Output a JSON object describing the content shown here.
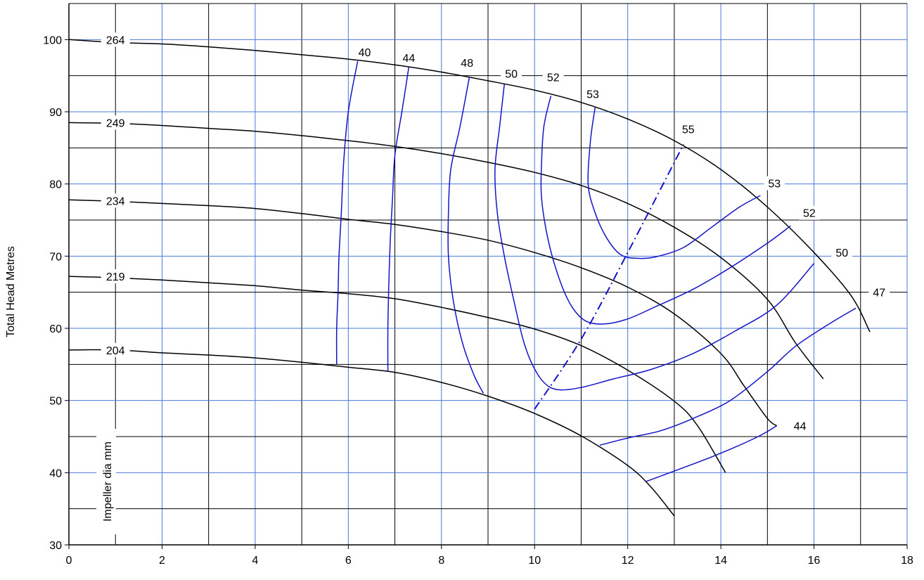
{
  "chart_data": {
    "type": "line",
    "title": "",
    "xlabel": "",
    "ylabel": "Total Head Metres",
    "inner_label": "Impeller dia mm",
    "xlim": [
      0,
      18
    ],
    "ylim": [
      30,
      105
    ],
    "x_ticks": [
      0,
      2,
      4,
      6,
      8,
      10,
      12,
      14,
      16,
      18
    ],
    "y_ticks": [
      30,
      40,
      50,
      60,
      70,
      80,
      90,
      100
    ],
    "grid": true,
    "colors": {
      "head": "#000000",
      "efficiency": "#1414c8",
      "grid_blue": "#4a78d8",
      "grid_black": "#000000"
    },
    "head_curves": [
      {
        "label": "264",
        "label_at": [
          1.0,
          100.0
        ],
        "points": [
          [
            0,
            100
          ],
          [
            1,
            99.6
          ],
          [
            2,
            99.4
          ],
          [
            3,
            99.0
          ],
          [
            4,
            98.5
          ],
          [
            5,
            97.9
          ],
          [
            6,
            97.3
          ],
          [
            7,
            96.5
          ],
          [
            8,
            95.5
          ],
          [
            9,
            94.3
          ],
          [
            10,
            93.0
          ],
          [
            11,
            91.3
          ],
          [
            12,
            89.0
          ],
          [
            13,
            86.0
          ],
          [
            14,
            82.0
          ],
          [
            15,
            76.8
          ],
          [
            16,
            70.5
          ],
          [
            16.8,
            64.5
          ],
          [
            17.2,
            59.5
          ]
        ]
      },
      {
        "label": "249",
        "label_at": [
          1.0,
          88.5
        ],
        "points": [
          [
            0,
            88.5
          ],
          [
            1,
            88.4
          ],
          [
            2,
            88.1
          ],
          [
            3,
            87.7
          ],
          [
            4,
            87.3
          ],
          [
            5,
            86.7
          ],
          [
            6,
            86.0
          ],
          [
            7,
            85.2
          ],
          [
            8,
            84.2
          ],
          [
            9,
            83.0
          ],
          [
            10,
            81.6
          ],
          [
            11,
            79.8
          ],
          [
            12,
            77.3
          ],
          [
            13,
            74.0
          ],
          [
            14,
            69.8
          ],
          [
            15,
            64.0
          ],
          [
            15.6,
            58.0
          ],
          [
            16.2,
            53.0
          ]
        ]
      },
      {
        "label": "234",
        "label_at": [
          1.0,
          77.7
        ],
        "points": [
          [
            0,
            77.8
          ],
          [
            1,
            77.6
          ],
          [
            2,
            77.3
          ],
          [
            3,
            77.0
          ],
          [
            4,
            76.6
          ],
          [
            5,
            75.9
          ],
          [
            6,
            75.1
          ],
          [
            7,
            74.4
          ],
          [
            8,
            73.4
          ],
          [
            9,
            72.2
          ],
          [
            10,
            70.5
          ],
          [
            11,
            68.4
          ],
          [
            12,
            65.7
          ],
          [
            13,
            62.0
          ],
          [
            14,
            56.5
          ],
          [
            14.5,
            52.0
          ],
          [
            15.0,
            47.5
          ],
          [
            15.2,
            46.5
          ]
        ]
      },
      {
        "label": "219",
        "label_at": [
          1.0,
          67.2
        ],
        "points": [
          [
            0,
            67.2
          ],
          [
            1,
            67.0
          ],
          [
            2,
            66.7
          ],
          [
            3,
            66.3
          ],
          [
            4,
            65.9
          ],
          [
            5,
            65.3
          ],
          [
            6,
            64.8
          ],
          [
            7,
            64.1
          ],
          [
            8,
            62.9
          ],
          [
            9,
            61.5
          ],
          [
            10,
            59.9
          ],
          [
            11,
            57.6
          ],
          [
            12,
            54.2
          ],
          [
            13,
            49.9
          ],
          [
            13.5,
            46.5
          ],
          [
            14.1,
            40.0
          ]
        ]
      },
      {
        "label": "204",
        "label_at": [
          1.0,
          57.0
        ],
        "points": [
          [
            0,
            57.0
          ],
          [
            1,
            57.0
          ],
          [
            2,
            56.6
          ],
          [
            3,
            56.3
          ],
          [
            4,
            55.9
          ],
          [
            5,
            55.3
          ],
          [
            6,
            54.6
          ],
          [
            7,
            53.9
          ],
          [
            8,
            52.5
          ],
          [
            9,
            50.6
          ],
          [
            10,
            48.2
          ],
          [
            11,
            45.1
          ],
          [
            12,
            41.0
          ],
          [
            12.5,
            38.0
          ],
          [
            13.0,
            34.0
          ]
        ]
      }
    ],
    "efficiency_curves": [
      {
        "label": "40",
        "label_at": [
          6.35,
          98.3
        ],
        "points": [
          [
            6.2,
            97.0
          ],
          [
            6.0,
            90.0
          ],
          [
            5.9,
            83.0
          ],
          [
            5.85,
            76.0
          ],
          [
            5.8,
            70.0
          ],
          [
            5.78,
            65.0
          ],
          [
            5.75,
            60.0
          ],
          [
            5.75,
            55.0
          ]
        ]
      },
      {
        "label": "44",
        "label_at": [
          7.3,
          97.5
        ],
        "points": [
          [
            7.3,
            96.2
          ],
          [
            7.15,
            90.0
          ],
          [
            7.0,
            84.0
          ],
          [
            6.95,
            78.0
          ],
          [
            6.9,
            72.0
          ],
          [
            6.87,
            66.0
          ],
          [
            6.85,
            60.0
          ],
          [
            6.85,
            54.0
          ]
        ]
      },
      {
        "label": "48",
        "label_at": [
          8.55,
          96.8
        ],
        "points": [
          [
            8.6,
            94.8
          ],
          [
            8.4,
            88.0
          ],
          [
            8.2,
            82.0
          ],
          [
            8.15,
            76.0
          ],
          [
            8.15,
            70.0
          ],
          [
            8.25,
            64.0
          ],
          [
            8.45,
            58.0
          ],
          [
            8.7,
            53.5
          ],
          [
            8.9,
            51.0
          ]
        ]
      },
      {
        "label": "50",
        "label_at": [
          9.5,
          95.3
        ],
        "points": [
          [
            9.35,
            93.8
          ],
          [
            9.25,
            88.0
          ],
          [
            9.15,
            82.0
          ],
          [
            9.2,
            76.0
          ],
          [
            9.35,
            70.0
          ],
          [
            9.55,
            64.0
          ],
          [
            9.75,
            58.5
          ],
          [
            9.95,
            55.0
          ],
          [
            10.2,
            52.5
          ],
          [
            10.5,
            51.5
          ],
          [
            11.0,
            51.8
          ],
          [
            11.7,
            53.0
          ],
          [
            12.5,
            54.3
          ],
          [
            13.4,
            56.5
          ],
          [
            14.3,
            59.6
          ],
          [
            15.2,
            63.2
          ],
          [
            16.0,
            69.0
          ]
        ]
      },
      {
        "label": "52",
        "label_at": [
          10.4,
          94.8
        ],
        "points": [
          [
            10.35,
            92.2
          ],
          [
            10.2,
            88.0
          ],
          [
            10.15,
            83.0
          ],
          [
            10.15,
            78.0
          ],
          [
            10.3,
            72.0
          ],
          [
            10.55,
            66.5
          ],
          [
            10.8,
            63.0
          ],
          [
            11.1,
            61.0
          ],
          [
            11.5,
            60.6
          ],
          [
            12.0,
            61.3
          ],
          [
            12.6,
            63.0
          ],
          [
            13.4,
            65.4
          ],
          [
            14.2,
            68.4
          ],
          [
            15.0,
            71.8
          ],
          [
            15.5,
            74.2
          ]
        ]
      },
      {
        "label": "53",
        "label_at": [
          11.25,
          92.5
        ],
        "points": [
          [
            11.3,
            90.6
          ],
          [
            11.2,
            86.0
          ],
          [
            11.15,
            80.0
          ],
          [
            11.3,
            76.0
          ],
          [
            11.55,
            72.5
          ],
          [
            11.85,
            70.2
          ],
          [
            12.2,
            69.7
          ],
          [
            12.6,
            69.9
          ],
          [
            13.2,
            71.2
          ],
          [
            13.8,
            74.0
          ],
          [
            14.4,
            76.8
          ],
          [
            14.85,
            78.4
          ]
        ]
      },
      {
        "label": "",
        "label_at": [
          0,
          0
        ],
        "points": [
          [
            11.4,
            43.8
          ],
          [
            12.0,
            44.8
          ],
          [
            12.7,
            45.8
          ],
          [
            13.4,
            47.5
          ],
          [
            14.2,
            50.0
          ],
          [
            15.0,
            54.0
          ],
          [
            15.6,
            57.5
          ],
          [
            16.3,
            60.5
          ],
          [
            16.9,
            62.8
          ]
        ]
      },
      {
        "label": "",
        "label_at": [
          0,
          0
        ],
        "points": [
          [
            12.4,
            38.8
          ],
          [
            13.2,
            40.7
          ],
          [
            14.0,
            42.7
          ],
          [
            14.8,
            45.0
          ],
          [
            15.2,
            46.5
          ]
        ]
      }
    ],
    "right_labels": [
      {
        "label": "55",
        "label_at": [
          13.3,
          87.6
        ]
      },
      {
        "label": "53",
        "label_at": [
          15.15,
          80.1
        ]
      },
      {
        "label": "52",
        "label_at": [
          15.9,
          76.0
        ]
      },
      {
        "label": "50",
        "label_at": [
          16.6,
          70.5
        ]
      },
      {
        "label": "47",
        "label_at": [
          17.4,
          65.0
        ]
      },
      {
        "label": "44",
        "label_at": [
          15.7,
          46.5
        ]
      }
    ],
    "bep_line": {
      "style": "dash-dot",
      "points": [
        [
          10.0,
          48.8
        ],
        [
          11.0,
          58.5
        ],
        [
          12.0,
          70.5
        ],
        [
          13.2,
          85.5
        ]
      ]
    }
  }
}
